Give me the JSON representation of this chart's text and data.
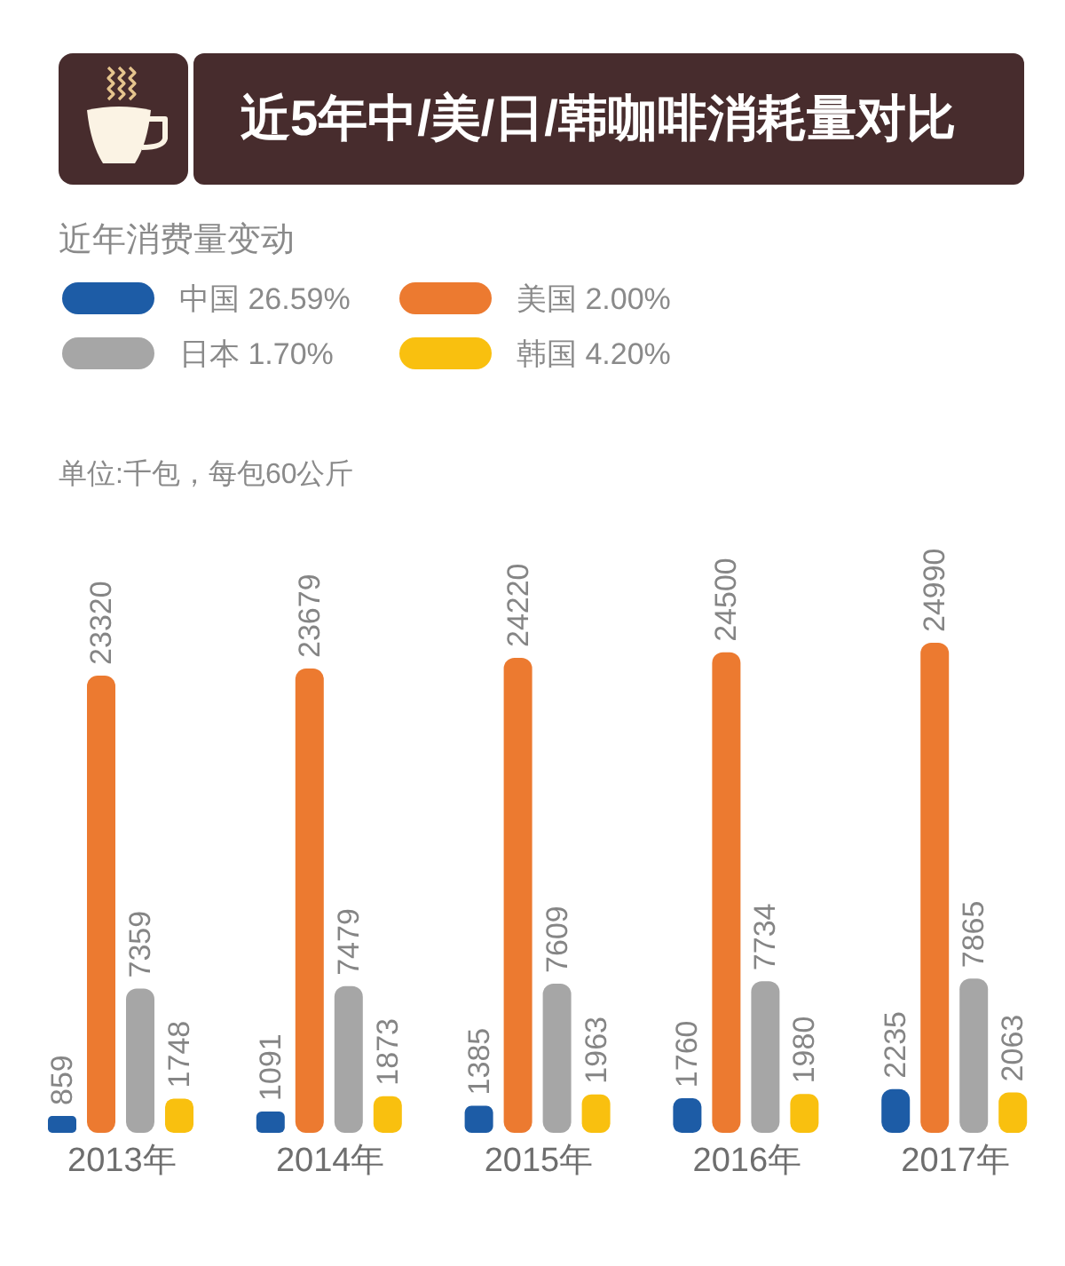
{
  "chart_data": {
    "type": "bar",
    "title": "近5年中/美/日/韩咖啡消耗量对比",
    "subtitle": "近年消费量变动",
    "annotations": [
      "单位:千包，每包60公斤"
    ],
    "categories": [
      "2013年",
      "2014年",
      "2015年",
      "2016年",
      "2017年"
    ],
    "series": [
      {
        "name": "中国 26.59%",
        "color": "#1d5ca6",
        "values": [
          859,
          1091,
          1385,
          1760,
          2235
        ]
      },
      {
        "name": "美国 2.00%",
        "color": "#ec7a30",
        "values": [
          23320,
          23679,
          24220,
          24500,
          24990
        ]
      },
      {
        "name": "日本 1.70%",
        "color": "#a6a6a6",
        "values": [
          7359,
          7479,
          7609,
          7734,
          7865
        ]
      },
      {
        "name": "韩国 4.20%",
        "color": "#f9c00f",
        "values": [
          1748,
          1873,
          1963,
          1980,
          2063
        ]
      }
    ],
    "data_labels": true,
    "legend": "top left",
    "tick_labels": "x"
  }
}
